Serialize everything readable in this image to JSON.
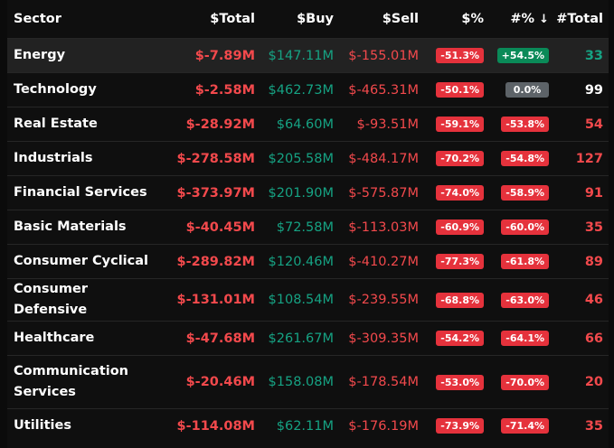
{
  "columns": {
    "sector": "Sector",
    "total": "$Total",
    "buy": "$Buy",
    "sell": "$Sell",
    "pct_dollar": "$%",
    "pct_count": "#%",
    "sort_arrow": "↓",
    "count_total": "#Total"
  },
  "colors": {
    "negative": "#f2494c",
    "positive": "#16a283",
    "badge_negative": "#e5323c",
    "badge_positive": "#0a8a58",
    "badge_neutral": "#5d6368",
    "count_positive": "#16a283",
    "count_neutral": "#ffffff",
    "count_negative": "#f2494c"
  },
  "rows": [
    {
      "sector": "Energy",
      "total": "$-7.89M",
      "buy": "$147.11M",
      "sell": "$-155.01M",
      "pct_dollar": "-51.3%",
      "pct_count": "+54.5%",
      "count": "33",
      "pct_count_tone": "pos",
      "count_tone": "pos"
    },
    {
      "sector": "Technology",
      "total": "$-2.58M",
      "buy": "$462.73M",
      "sell": "$-465.31M",
      "pct_dollar": "-50.1%",
      "pct_count": "0.0%",
      "count": "99",
      "pct_count_tone": "neu",
      "count_tone": "neu"
    },
    {
      "sector": "Real Estate",
      "total": "$-28.92M",
      "buy": "$64.60M",
      "sell": "$-93.51M",
      "pct_dollar": "-59.1%",
      "pct_count": "-53.8%",
      "count": "54",
      "pct_count_tone": "neg",
      "count_tone": "neg"
    },
    {
      "sector": "Industrials",
      "total": "$-278.58M",
      "buy": "$205.58M",
      "sell": "$-484.17M",
      "pct_dollar": "-70.2%",
      "pct_count": "-54.8%",
      "count": "127",
      "pct_count_tone": "neg",
      "count_tone": "neg"
    },
    {
      "sector": "Financial Services",
      "total": "$-373.97M",
      "buy": "$201.90M",
      "sell": "$-575.87M",
      "pct_dollar": "-74.0%",
      "pct_count": "-58.9%",
      "count": "91",
      "pct_count_tone": "neg",
      "count_tone": "neg"
    },
    {
      "sector": "Basic Materials",
      "total": "$-40.45M",
      "buy": "$72.58M",
      "sell": "$-113.03M",
      "pct_dollar": "-60.9%",
      "pct_count": "-60.0%",
      "count": "35",
      "pct_count_tone": "neg",
      "count_tone": "neg"
    },
    {
      "sector": "Consumer Cyclical",
      "total": "$-289.82M",
      "buy": "$120.46M",
      "sell": "$-410.27M",
      "pct_dollar": "-77.3%",
      "pct_count": "-61.8%",
      "count": "89",
      "pct_count_tone": "neg",
      "count_tone": "neg"
    },
    {
      "sector": "Consumer Defensive",
      "total": "$-131.01M",
      "buy": "$108.54M",
      "sell": "$-239.55M",
      "pct_dollar": "-68.8%",
      "pct_count": "-63.0%",
      "count": "46",
      "pct_count_tone": "neg",
      "count_tone": "neg"
    },
    {
      "sector": "Healthcare",
      "total": "$-47.68M",
      "buy": "$261.67M",
      "sell": "$-309.35M",
      "pct_dollar": "-54.2%",
      "pct_count": "-64.1%",
      "count": "66",
      "pct_count_tone": "neg",
      "count_tone": "neg"
    },
    {
      "sector": "Communication Services",
      "total": "$-20.46M",
      "buy": "$158.08M",
      "sell": "$-178.54M",
      "pct_dollar": "-53.0%",
      "pct_count": "-70.0%",
      "count": "20",
      "pct_count_tone": "neg",
      "count_tone": "neg"
    },
    {
      "sector": "Utilities",
      "total": "$-114.08M",
      "buy": "$62.11M",
      "sell": "$-176.19M",
      "pct_dollar": "-73.9%",
      "pct_count": "-71.4%",
      "count": "35",
      "pct_count_tone": "neg",
      "count_tone": "neg"
    }
  ]
}
